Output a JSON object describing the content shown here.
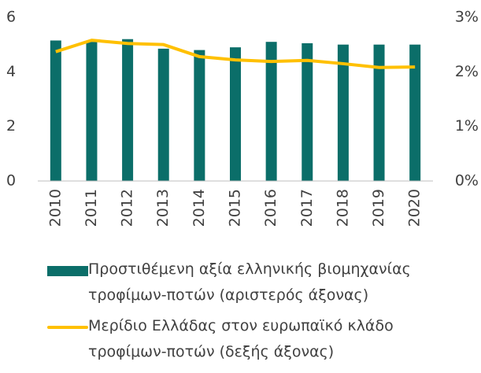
{
  "chart_data": {
    "type": "bar-line",
    "categories": [
      "2010",
      "2011",
      "2012",
      "2013",
      "2014",
      "2015",
      "2016",
      "2017",
      "2018",
      "2019",
      "2020"
    ],
    "series": [
      {
        "name": "Προστιθέμενη αξία ελληνικής βιομηχανίας τροφίμων-ποτών (αριστερός άξονας)",
        "type": "bar",
        "color": "#0b6e69",
        "values": [
          5.15,
          5.1,
          5.2,
          4.85,
          4.8,
          4.9,
          5.1,
          5.05,
          5.0,
          5.0,
          5.0
        ]
      },
      {
        "name": "Μερίδιο Ελλάδας στον ευρωπαϊκό κλάδο τροφίμων-ποτών (δεξής άξονας)",
        "type": "line",
        "axis": "y2",
        "color": "#ffc000",
        "values": [
          2.37,
          2.58,
          2.52,
          2.5,
          2.28,
          2.22,
          2.19,
          2.21,
          2.15,
          2.08,
          2.09
        ]
      }
    ],
    "ylim": [
      0,
      6
    ],
    "yticks": [
      0,
      2,
      4,
      6
    ],
    "y2lim": [
      0,
      3
    ],
    "y2ticks": [
      {
        "value": 0,
        "label": "0%"
      },
      {
        "value": 1,
        "label": "1%"
      },
      {
        "value": 2,
        "label": "2%"
      },
      {
        "value": 3,
        "label": "3%"
      }
    ],
    "legend": "bottom"
  }
}
